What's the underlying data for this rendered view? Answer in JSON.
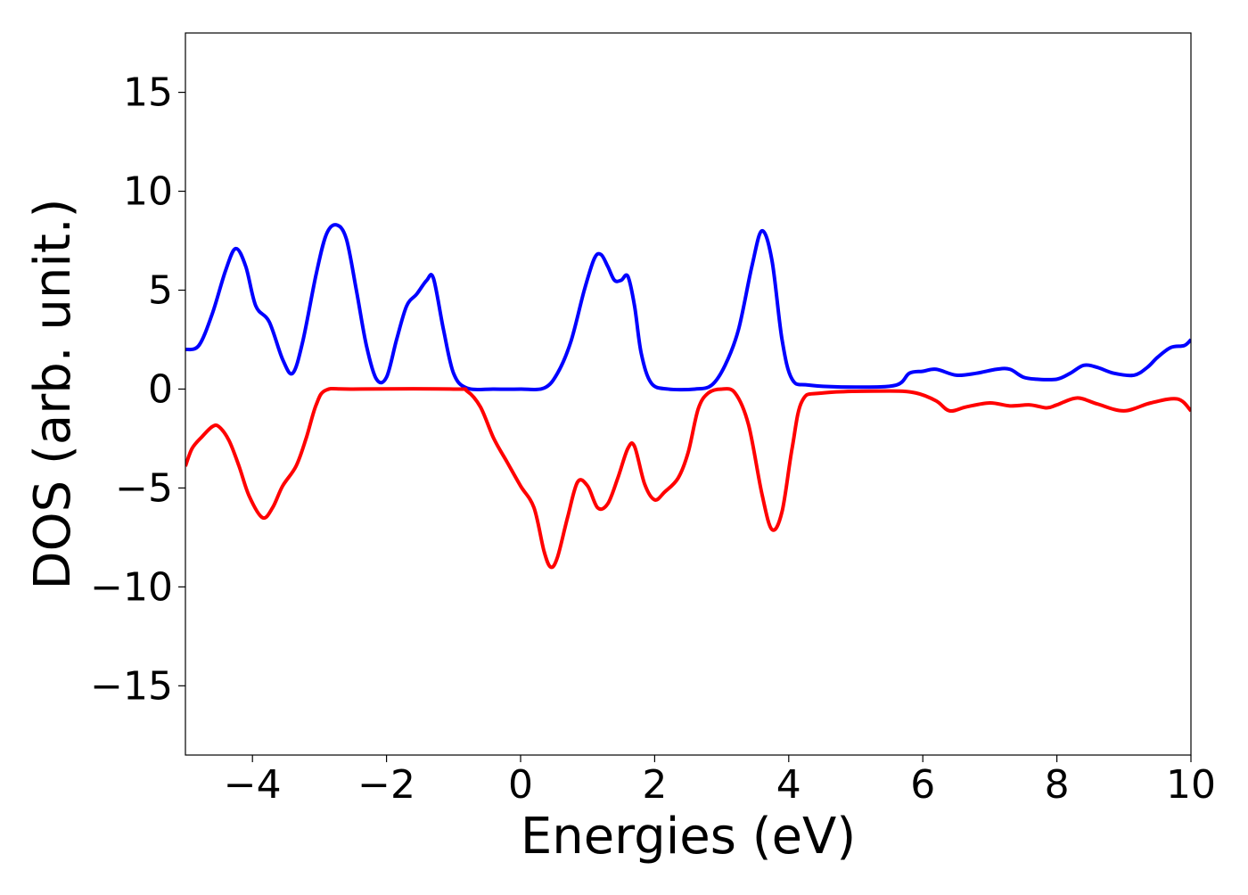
{
  "chart_data": {
    "type": "line",
    "title": "",
    "xlabel": "Energies (eV)",
    "ylabel": "DOS (arb. unit.)",
    "xlim": [
      -5,
      10
    ],
    "ylim": [
      -18.5,
      18
    ],
    "xticks": [
      -4,
      -2,
      0,
      2,
      4,
      6,
      8,
      10
    ],
    "xtick_labels": [
      "−4",
      "−2",
      "0",
      "2",
      "4",
      "6",
      "8",
      "10"
    ],
    "yticks": [
      -15,
      -10,
      -5,
      0,
      5,
      10,
      15
    ],
    "ytick_labels": [
      "−15",
      "−10",
      "−5",
      "0",
      "5",
      "10",
      "15"
    ],
    "grid": false,
    "legend": "none",
    "series": [
      {
        "color": "#0000ff",
        "points": [
          [
            -5.0,
            2.0
          ],
          [
            -4.8,
            2.2
          ],
          [
            -4.6,
            3.8
          ],
          [
            -4.4,
            6.0
          ],
          [
            -4.25,
            7.1
          ],
          [
            -4.1,
            6.2
          ],
          [
            -3.95,
            4.2
          ],
          [
            -3.75,
            3.4
          ],
          [
            -3.55,
            1.5
          ],
          [
            -3.4,
            0.8
          ],
          [
            -3.25,
            2.4
          ],
          [
            -3.05,
            5.8
          ],
          [
            -2.9,
            7.8
          ],
          [
            -2.75,
            8.3
          ],
          [
            -2.6,
            7.6
          ],
          [
            -2.45,
            5.0
          ],
          [
            -2.3,
            2.2
          ],
          [
            -2.15,
            0.5
          ],
          [
            -2.0,
            0.6
          ],
          [
            -1.85,
            2.5
          ],
          [
            -1.7,
            4.2
          ],
          [
            -1.55,
            4.8
          ],
          [
            -1.4,
            5.5
          ],
          [
            -1.3,
            5.6
          ],
          [
            -1.15,
            3.0
          ],
          [
            -1.0,
            0.8
          ],
          [
            -0.8,
            0.05
          ],
          [
            -0.4,
            0.0
          ],
          [
            0.0,
            0.0
          ],
          [
            0.35,
            0.05
          ],
          [
            0.55,
            0.8
          ],
          [
            0.75,
            2.4
          ],
          [
            0.95,
            5.0
          ],
          [
            1.1,
            6.6
          ],
          [
            1.2,
            6.8
          ],
          [
            1.3,
            6.2
          ],
          [
            1.4,
            5.5
          ],
          [
            1.5,
            5.5
          ],
          [
            1.6,
            5.7
          ],
          [
            1.7,
            4.2
          ],
          [
            1.8,
            1.8
          ],
          [
            1.95,
            0.3
          ],
          [
            2.2,
            0.0
          ],
          [
            2.6,
            0.0
          ],
          [
            2.85,
            0.2
          ],
          [
            3.05,
            1.2
          ],
          [
            3.25,
            3.0
          ],
          [
            3.45,
            6.2
          ],
          [
            3.6,
            8.0
          ],
          [
            3.75,
            6.5
          ],
          [
            3.9,
            2.5
          ],
          [
            4.05,
            0.5
          ],
          [
            4.3,
            0.2
          ],
          [
            5.0,
            0.1
          ],
          [
            5.6,
            0.2
          ],
          [
            5.8,
            0.8
          ],
          [
            6.0,
            0.9
          ],
          [
            6.2,
            1.0
          ],
          [
            6.5,
            0.7
          ],
          [
            6.8,
            0.8
          ],
          [
            7.1,
            1.0
          ],
          [
            7.3,
            1.0
          ],
          [
            7.5,
            0.6
          ],
          [
            7.7,
            0.5
          ],
          [
            8.0,
            0.5
          ],
          [
            8.2,
            0.8
          ],
          [
            8.4,
            1.2
          ],
          [
            8.6,
            1.1
          ],
          [
            8.85,
            0.8
          ],
          [
            9.15,
            0.7
          ],
          [
            9.35,
            1.1
          ],
          [
            9.5,
            1.6
          ],
          [
            9.7,
            2.1
          ],
          [
            9.9,
            2.2
          ],
          [
            10.0,
            2.5
          ]
        ]
      },
      {
        "color": "#ff0000",
        "points": [
          [
            -5.0,
            -3.9
          ],
          [
            -4.9,
            -3.0
          ],
          [
            -4.75,
            -2.4
          ],
          [
            -4.6,
            -1.9
          ],
          [
            -4.5,
            -1.9
          ],
          [
            -4.35,
            -2.6
          ],
          [
            -4.2,
            -3.9
          ],
          [
            -4.05,
            -5.4
          ],
          [
            -3.85,
            -6.5
          ],
          [
            -3.7,
            -6.0
          ],
          [
            -3.55,
            -4.9
          ],
          [
            -3.35,
            -3.9
          ],
          [
            -3.2,
            -2.5
          ],
          [
            -3.05,
            -0.8
          ],
          [
            -2.9,
            -0.05
          ],
          [
            -2.5,
            0.0
          ],
          [
            -1.0,
            0.0
          ],
          [
            -0.8,
            -0.1
          ],
          [
            -0.6,
            -0.9
          ],
          [
            -0.4,
            -2.5
          ],
          [
            -0.2,
            -3.7
          ],
          [
            0.0,
            -4.9
          ],
          [
            0.2,
            -6.0
          ],
          [
            0.35,
            -8.2
          ],
          [
            0.45,
            -9.0
          ],
          [
            0.55,
            -8.5
          ],
          [
            0.7,
            -6.5
          ],
          [
            0.85,
            -4.7
          ],
          [
            1.0,
            -4.9
          ],
          [
            1.15,
            -6.0
          ],
          [
            1.3,
            -5.8
          ],
          [
            1.45,
            -4.5
          ],
          [
            1.6,
            -3.0
          ],
          [
            1.7,
            -2.9
          ],
          [
            1.85,
            -4.8
          ],
          [
            2.0,
            -5.6
          ],
          [
            2.15,
            -5.2
          ],
          [
            2.35,
            -4.5
          ],
          [
            2.5,
            -3.2
          ],
          [
            2.65,
            -1.0
          ],
          [
            2.8,
            -0.2
          ],
          [
            3.0,
            0.0
          ],
          [
            3.2,
            -0.2
          ],
          [
            3.4,
            -1.8
          ],
          [
            3.6,
            -5.3
          ],
          [
            3.75,
            -7.1
          ],
          [
            3.9,
            -6.2
          ],
          [
            4.05,
            -3.0
          ],
          [
            4.2,
            -0.6
          ],
          [
            4.5,
            -0.2
          ],
          [
            5.5,
            -0.1
          ],
          [
            5.9,
            -0.2
          ],
          [
            6.2,
            -0.6
          ],
          [
            6.4,
            -1.1
          ],
          [
            6.65,
            -0.9
          ],
          [
            7.0,
            -0.7
          ],
          [
            7.3,
            -0.85
          ],
          [
            7.6,
            -0.8
          ],
          [
            7.85,
            -0.95
          ],
          [
            8.0,
            -0.8
          ],
          [
            8.3,
            -0.45
          ],
          [
            8.6,
            -0.75
          ],
          [
            9.0,
            -1.1
          ],
          [
            9.4,
            -0.7
          ],
          [
            9.8,
            -0.5
          ],
          [
            10.0,
            -1.1
          ]
        ]
      }
    ]
  }
}
